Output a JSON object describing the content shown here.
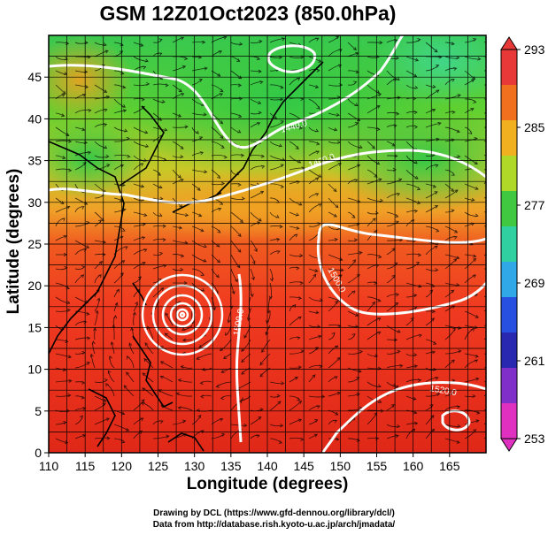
{
  "title": "GSM 12Z01Oct2023 (850.0hPa)",
  "xlabel": "Longitude (degrees)",
  "ylabel": "Latitude  (degrees)",
  "credit_line1": "Drawing by DCL (https://www.gfd-dennou.org/library/dcl/)",
  "credit_line2": "Data from http://database.rish.kyoto-u.ac.jp/arch/jmadata/",
  "map": {
    "lon_ticks": [
      110,
      115,
      120,
      125,
      130,
      135,
      140,
      145,
      150,
      155,
      160,
      165
    ],
    "lat_ticks": [
      0,
      5,
      10,
      15,
      20,
      25,
      30,
      35,
      40,
      45
    ],
    "lon_range": [
      110,
      170
    ],
    "lat_range": [
      0,
      50
    ],
    "contour_labels": [
      "1440.0",
      "1460.0",
      "1500.0",
      "1520.0",
      "1500.0"
    ],
    "colorbar": {
      "ticks": [
        "293",
        "285",
        "277",
        "269",
        "261",
        "253"
      ],
      "range": [
        253,
        293
      ],
      "colors": [
        "#e83838",
        "#f07020",
        "#f0b020",
        "#b0d828",
        "#40c840",
        "#30d0a0",
        "#30a8e8",
        "#2850e0",
        "#2828b0",
        "#8030c8",
        "#e030c0"
      ]
    }
  }
}
